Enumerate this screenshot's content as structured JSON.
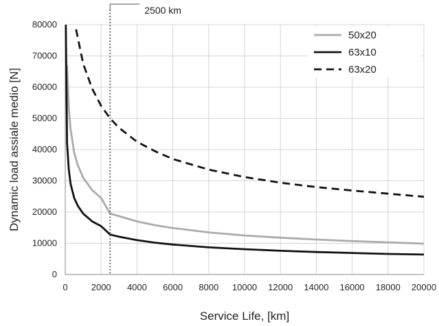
{
  "chart_data": {
    "type": "line",
    "title": "",
    "xlabel": "Service Life, [km]",
    "ylabel": "Dynamic load assiale medio [N]",
    "xlim": [
      0,
      20000
    ],
    "ylim": [
      0,
      80000
    ],
    "x_ticks": [
      0,
      2000,
      4000,
      6000,
      8000,
      10000,
      12000,
      14000,
      16000,
      18000,
      20000
    ],
    "y_ticks": [
      0,
      10000,
      20000,
      30000,
      40000,
      50000,
      60000,
      70000,
      80000
    ],
    "grid": true,
    "legend_position": "top-right",
    "series": [
      {
        "name": "50x20",
        "color": "#aaaaaa",
        "style": "solid",
        "x": [
          100,
          200,
          300,
          500,
          700,
          1000,
          1500,
          2000,
          2500,
          3000,
          4000,
          5000,
          6000,
          8000,
          10000,
          12000,
          14000,
          16000,
          18000,
          20000
        ],
        "y": [
          67000,
          53000,
          46500,
          39000,
          35000,
          31000,
          27000,
          24500,
          19500,
          18700,
          17000,
          15800,
          14900,
          13500,
          12500,
          11800,
          11200,
          10700,
          10300,
          9900
        ]
      },
      {
        "name": "63x10",
        "color": "#111111",
        "style": "solid",
        "x": [
          30,
          100,
          200,
          300,
          500,
          700,
          1000,
          1500,
          2000,
          2500,
          3000,
          4000,
          5000,
          6000,
          8000,
          10000,
          12000,
          14000,
          16000,
          18000,
          20000
        ],
        "y": [
          80000,
          42000,
          33500,
          29000,
          24500,
          22000,
          19500,
          17000,
          15500,
          12800,
          12100,
          11000,
          10200,
          9600,
          8700,
          8100,
          7600,
          7200,
          6900,
          6600,
          6400
        ]
      },
      {
        "name": "63x20",
        "color": "#111111",
        "style": "dashed",
        "x": [
          600,
          1000,
          1500,
          2000,
          2500,
          3000,
          4000,
          5000,
          6000,
          8000,
          10000,
          12000,
          14000,
          16000,
          18000,
          20000
        ],
        "y": [
          78500,
          67500,
          59500,
          54000,
          50000,
          47000,
          42500,
          39500,
          37000,
          33600,
          31200,
          29400,
          28000,
          26900,
          25900,
          24900
        ]
      }
    ],
    "annotations": [
      {
        "type": "vline",
        "x": 2500,
        "label": "2500 km"
      }
    ]
  }
}
